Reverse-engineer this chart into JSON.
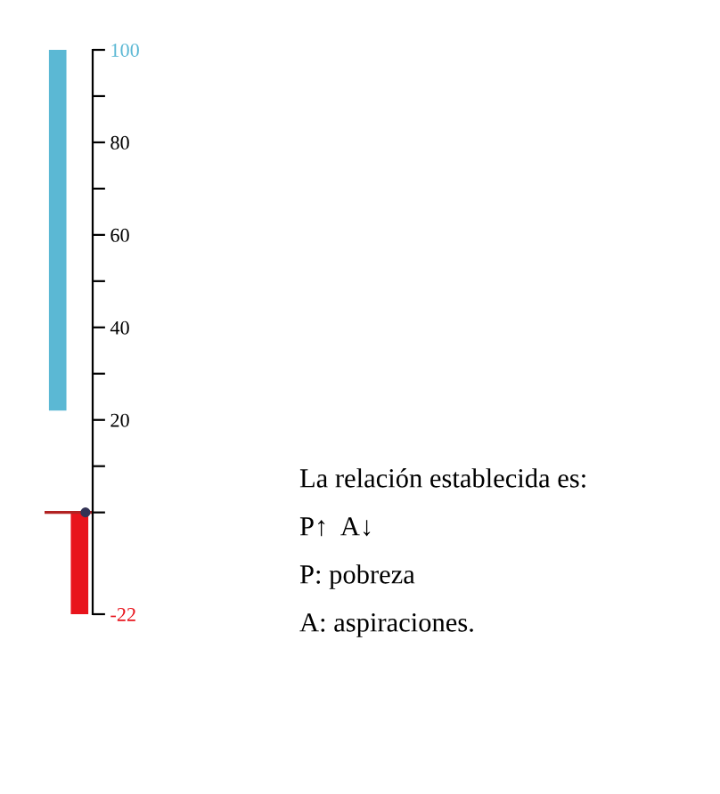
{
  "chart_data": {
    "type": "bar",
    "categories": [
      null,
      null
    ],
    "values": [
      78,
      -22
    ],
    "base": [
      22,
      0
    ],
    "colors": [
      "#5bb8d4",
      "#e8141c"
    ],
    "ylim": [
      -22,
      100
    ],
    "yticks": [
      {
        "value": -22,
        "label": "-22"
      },
      {
        "value": 0,
        "label": null
      },
      {
        "value": 10,
        "label": null
      },
      20,
      {
        "value": 30,
        "label": null
      },
      40,
      {
        "value": 50,
        "label": null
      },
      60,
      {
        "value": 70,
        "label": null
      },
      80,
      {
        "value": 90,
        "label": null
      },
      100
    ],
    "ref_lines": [
      {
        "axis": "y",
        "value": 0,
        "color": "#b22222"
      }
    ],
    "grid": false,
    "annotations": [
      "La relación establecida es:",
      "P↑  A↓",
      "P: pobreza",
      "A: aspiraciones."
    ]
  }
}
